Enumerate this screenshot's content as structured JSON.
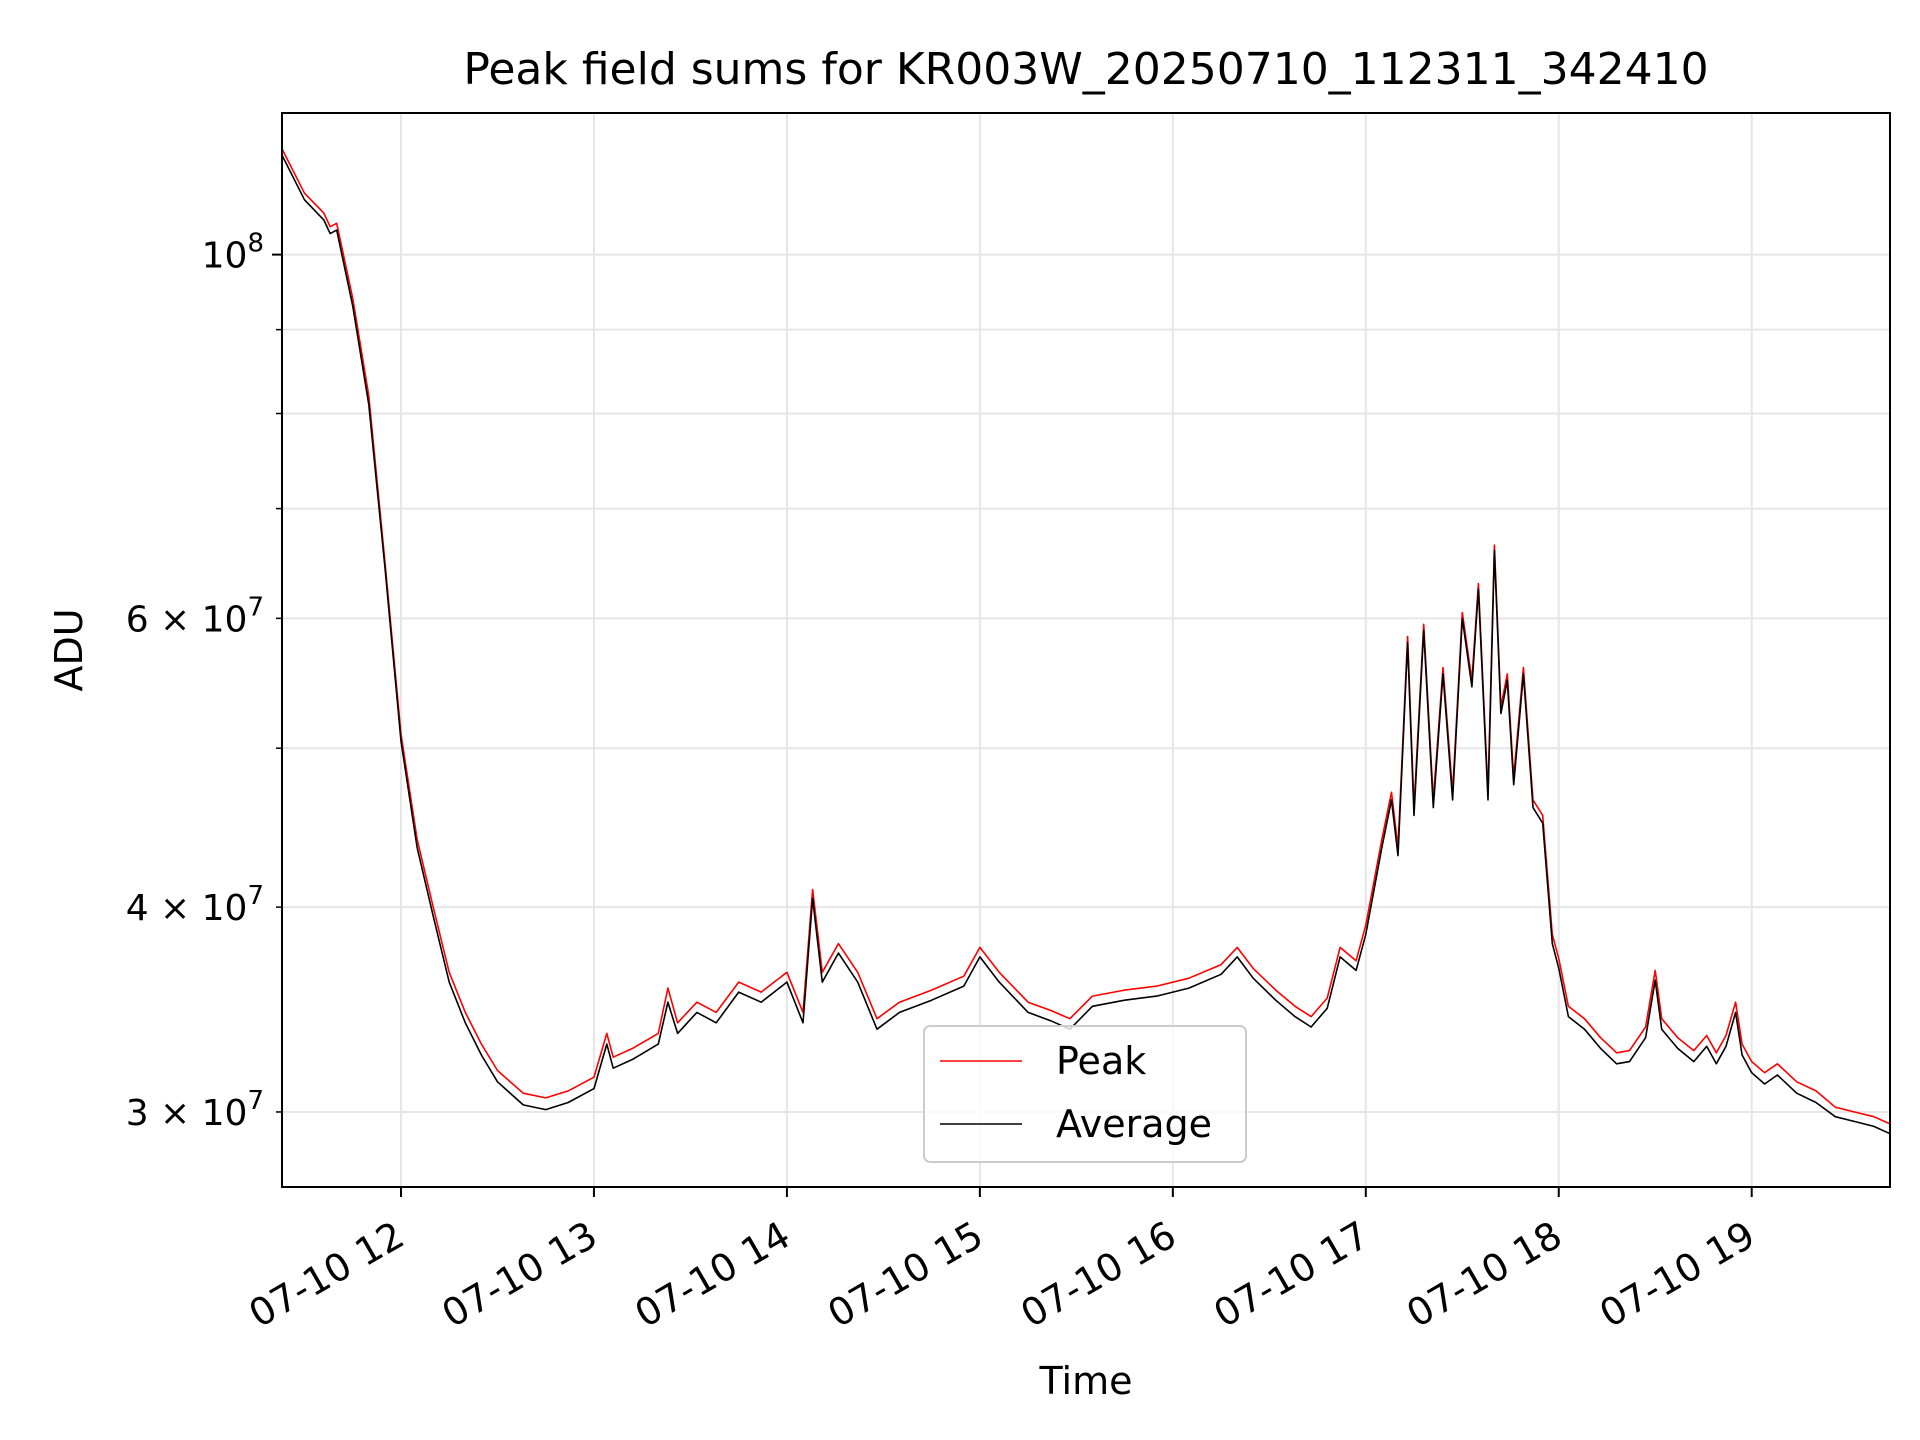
{
  "chart_data": {
    "type": "line",
    "title": "Peak field sums for KR003W_20250710_112311_342410",
    "xlabel": "Time",
    "ylabel": "ADU",
    "yscale": "log",
    "grid": true,
    "legend_position": "lower-center",
    "x_tick_labels": [
      "07-10 12",
      "07-10 13",
      "07-10 14",
      "07-10 15",
      "07-10 16",
      "07-10 17",
      "07-10 18",
      "07-10 19"
    ],
    "y_tick_labels": [
      {
        "base": "10",
        "exp": "8",
        "mult": ""
      },
      {
        "base": "10",
        "exp": "7",
        "mult": "6 × "
      },
      {
        "base": "10",
        "exp": "7",
        "mult": "4 × "
      },
      {
        "base": "10",
        "exp": "7",
        "mult": "3 × "
      }
    ],
    "xlim": [
      "2025-07-10 11:23",
      "2025-07-10 19:43"
    ],
    "ylim": [
      27000000,
      122000000
    ],
    "series": [
      {
        "name": "Peak",
        "color": "#ff0000",
        "points": [
          [
            "2025-07-10 11:23",
            116000000
          ],
          [
            "2025-07-10 11:30",
            109000000
          ],
          [
            "2025-07-10 11:36",
            106000000
          ],
          [
            "2025-07-10 11:38",
            104000000
          ],
          [
            "2025-07-10 11:40",
            104500000
          ],
          [
            "2025-07-10 11:45",
            94000000
          ],
          [
            "2025-07-10 11:50",
            82000000
          ],
          [
            "2025-07-10 11:55",
            65000000
          ],
          [
            "2025-07-10 12:00",
            51000000
          ],
          [
            "2025-07-10 12:05",
            44000000
          ],
          [
            "2025-07-10 12:10",
            40000000
          ],
          [
            "2025-07-10 12:15",
            36500000
          ],
          [
            "2025-07-10 12:20",
            34500000
          ],
          [
            "2025-07-10 12:25",
            33000000
          ],
          [
            "2025-07-10 12:30",
            31800000
          ],
          [
            "2025-07-10 12:38",
            30800000
          ],
          [
            "2025-07-10 12:45",
            30600000
          ],
          [
            "2025-07-10 12:52",
            30900000
          ],
          [
            "2025-07-10 13:00",
            31500000
          ],
          [
            "2025-07-10 13:04",
            33500000
          ],
          [
            "2025-07-10 13:06",
            32400000
          ],
          [
            "2025-07-10 13:12",
            32800000
          ],
          [
            "2025-07-10 13:20",
            33500000
          ],
          [
            "2025-07-10 13:23",
            35700000
          ],
          [
            "2025-07-10 13:26",
            34000000
          ],
          [
            "2025-07-10 13:32",
            35000000
          ],
          [
            "2025-07-10 13:38",
            34500000
          ],
          [
            "2025-07-10 13:45",
            36000000
          ],
          [
            "2025-07-10 13:52",
            35500000
          ],
          [
            "2025-07-10 14:00",
            36500000
          ],
          [
            "2025-07-10 14:05",
            34500000
          ],
          [
            "2025-07-10 14:08",
            41000000
          ],
          [
            "2025-07-10 14:11",
            36500000
          ],
          [
            "2025-07-10 14:16",
            38000000
          ],
          [
            "2025-07-10 14:22",
            36500000
          ],
          [
            "2025-07-10 14:28",
            34200000
          ],
          [
            "2025-07-10 14:35",
            35000000
          ],
          [
            "2025-07-10 14:45",
            35600000
          ],
          [
            "2025-07-10 14:55",
            36300000
          ],
          [
            "2025-07-10 15:00",
            37800000
          ],
          [
            "2025-07-10 15:06",
            36500000
          ],
          [
            "2025-07-10 15:15",
            35000000
          ],
          [
            "2025-07-10 15:22",
            34600000
          ],
          [
            "2025-07-10 15:28",
            34200000
          ],
          [
            "2025-07-10 15:35",
            35300000
          ],
          [
            "2025-07-10 15:45",
            35600000
          ],
          [
            "2025-07-10 15:55",
            35800000
          ],
          [
            "2025-07-10 16:05",
            36200000
          ],
          [
            "2025-07-10 16:15",
            36900000
          ],
          [
            "2025-07-10 16:20",
            37800000
          ],
          [
            "2025-07-10 16:25",
            36700000
          ],
          [
            "2025-07-10 16:32",
            35600000
          ],
          [
            "2025-07-10 16:38",
            34800000
          ],
          [
            "2025-07-10 16:43",
            34300000
          ],
          [
            "2025-07-10 16:48",
            35200000
          ],
          [
            "2025-07-10 16:52",
            37800000
          ],
          [
            "2025-07-10 16:57",
            37100000
          ],
          [
            "2025-07-10 17:00",
            39000000
          ],
          [
            "2025-07-10 17:05",
            44000000
          ],
          [
            "2025-07-10 17:08",
            47000000
          ],
          [
            "2025-07-10 17:10",
            43500000
          ],
          [
            "2025-07-10 17:13",
            58500000
          ],
          [
            "2025-07-10 17:15",
            46000000
          ],
          [
            "2025-07-10 17:18",
            59500000
          ],
          [
            "2025-07-10 17:21",
            46500000
          ],
          [
            "2025-07-10 17:24",
            56000000
          ],
          [
            "2025-07-10 17:27",
            47000000
          ],
          [
            "2025-07-10 17:30",
            60500000
          ],
          [
            "2025-07-10 17:33",
            55000000
          ],
          [
            "2025-07-10 17:35",
            63000000
          ],
          [
            "2025-07-10 17:38",
            47000000
          ],
          [
            "2025-07-10 17:40",
            66500000
          ],
          [
            "2025-07-10 17:42",
            53000000
          ],
          [
            "2025-07-10 17:44",
            55500000
          ],
          [
            "2025-07-10 17:46",
            48000000
          ],
          [
            "2025-07-10 17:49",
            56000000
          ],
          [
            "2025-07-10 17:52",
            46500000
          ],
          [
            "2025-07-10 17:55",
            45500000
          ],
          [
            "2025-07-10 17:58",
            38500000
          ],
          [
            "2025-07-10 18:00",
            37200000
          ],
          [
            "2025-07-10 18:03",
            34800000
          ],
          [
            "2025-07-10 18:08",
            34200000
          ],
          [
            "2025-07-10 18:13",
            33300000
          ],
          [
            "2025-07-10 18:18",
            32600000
          ],
          [
            "2025-07-10 18:22",
            32700000
          ],
          [
            "2025-07-10 18:27",
            33800000
          ],
          [
            "2025-07-10 18:30",
            36600000
          ],
          [
            "2025-07-10 18:32",
            34200000
          ],
          [
            "2025-07-10 18:37",
            33300000
          ],
          [
            "2025-07-10 18:42",
            32700000
          ],
          [
            "2025-07-10 18:46",
            33400000
          ],
          [
            "2025-07-10 18:49",
            32600000
          ],
          [
            "2025-07-10 18:52",
            33400000
          ],
          [
            "2025-07-10 18:55",
            35000000
          ],
          [
            "2025-07-10 18:57",
            33000000
          ],
          [
            "2025-07-10 19:00",
            32200000
          ],
          [
            "2025-07-10 19:04",
            31700000
          ],
          [
            "2025-07-10 19:08",
            32100000
          ],
          [
            "2025-07-10 19:14",
            31300000
          ],
          [
            "2025-07-10 19:20",
            30900000
          ],
          [
            "2025-07-10 19:26",
            30200000
          ],
          [
            "2025-07-10 19:32",
            30000000
          ],
          [
            "2025-07-10 19:38",
            29800000
          ],
          [
            "2025-07-10 19:43",
            29500000
          ]
        ]
      },
      {
        "name": "Average",
        "color": "#000000",
        "points": [
          [
            "2025-07-10 11:23",
            115000000
          ],
          [
            "2025-07-10 11:30",
            108000000
          ],
          [
            "2025-07-10 11:36",
            105000000
          ],
          [
            "2025-07-10 11:38",
            103000000
          ],
          [
            "2025-07-10 11:40",
            103500000
          ],
          [
            "2025-07-10 11:45",
            93000000
          ],
          [
            "2025-07-10 11:50",
            81000000
          ],
          [
            "2025-07-10 11:55",
            64500000
          ],
          [
            "2025-07-10 12:00",
            50500000
          ],
          [
            "2025-07-10 12:05",
            43500000
          ],
          [
            "2025-07-10 12:10",
            39500000
          ],
          [
            "2025-07-10 12:15",
            36000000
          ],
          [
            "2025-07-10 12:20",
            34000000
          ],
          [
            "2025-07-10 12:25",
            32500000
          ],
          [
            "2025-07-10 12:30",
            31300000
          ],
          [
            "2025-07-10 12:38",
            30300000
          ],
          [
            "2025-07-10 12:45",
            30100000
          ],
          [
            "2025-07-10 12:52",
            30400000
          ],
          [
            "2025-07-10 13:00",
            31000000
          ],
          [
            "2025-07-10 13:04",
            33000000
          ],
          [
            "2025-07-10 13:06",
            31900000
          ],
          [
            "2025-07-10 13:12",
            32300000
          ],
          [
            "2025-07-10 13:20",
            33000000
          ],
          [
            "2025-07-10 13:23",
            35000000
          ],
          [
            "2025-07-10 13:26",
            33500000
          ],
          [
            "2025-07-10 13:32",
            34500000
          ],
          [
            "2025-07-10 13:38",
            34000000
          ],
          [
            "2025-07-10 13:45",
            35500000
          ],
          [
            "2025-07-10 13:52",
            35000000
          ],
          [
            "2025-07-10 14:00",
            36000000
          ],
          [
            "2025-07-10 14:05",
            34000000
          ],
          [
            "2025-07-10 14:08",
            40500000
          ],
          [
            "2025-07-10 14:11",
            36000000
          ],
          [
            "2025-07-10 14:16",
            37500000
          ],
          [
            "2025-07-10 14:22",
            36000000
          ],
          [
            "2025-07-10 14:28",
            33700000
          ],
          [
            "2025-07-10 14:35",
            34500000
          ],
          [
            "2025-07-10 14:45",
            35100000
          ],
          [
            "2025-07-10 14:55",
            35800000
          ],
          [
            "2025-07-10 15:00",
            37300000
          ],
          [
            "2025-07-10 15:06",
            36000000
          ],
          [
            "2025-07-10 15:15",
            34500000
          ],
          [
            "2025-07-10 15:22",
            34100000
          ],
          [
            "2025-07-10 15:28",
            33700000
          ],
          [
            "2025-07-10 15:35",
            34800000
          ],
          [
            "2025-07-10 15:45",
            35100000
          ],
          [
            "2025-07-10 15:55",
            35300000
          ],
          [
            "2025-07-10 16:05",
            35700000
          ],
          [
            "2025-07-10 16:15",
            36400000
          ],
          [
            "2025-07-10 16:20",
            37300000
          ],
          [
            "2025-07-10 16:25",
            36200000
          ],
          [
            "2025-07-10 16:32",
            35100000
          ],
          [
            "2025-07-10 16:38",
            34300000
          ],
          [
            "2025-07-10 16:43",
            33800000
          ],
          [
            "2025-07-10 16:48",
            34700000
          ],
          [
            "2025-07-10 16:52",
            37300000
          ],
          [
            "2025-07-10 16:57",
            36600000
          ],
          [
            "2025-07-10 17:00",
            38500000
          ],
          [
            "2025-07-10 17:05",
            43500000
          ],
          [
            "2025-07-10 17:08",
            46500000
          ],
          [
            "2025-07-10 17:10",
            43000000
          ],
          [
            "2025-07-10 17:13",
            58000000
          ],
          [
            "2025-07-10 17:15",
            45500000
          ],
          [
            "2025-07-10 17:18",
            59000000
          ],
          [
            "2025-07-10 17:21",
            46000000
          ],
          [
            "2025-07-10 17:24",
            55500000
          ],
          [
            "2025-07-10 17:27",
            46500000
          ],
          [
            "2025-07-10 17:30",
            60000000
          ],
          [
            "2025-07-10 17:33",
            54500000
          ],
          [
            "2025-07-10 17:35",
            62500000
          ],
          [
            "2025-07-10 17:38",
            46500000
          ],
          [
            "2025-07-10 17:40",
            66000000
          ],
          [
            "2025-07-10 17:42",
            52500000
          ],
          [
            "2025-07-10 17:44",
            55000000
          ],
          [
            "2025-07-10 17:46",
            47500000
          ],
          [
            "2025-07-10 17:49",
            55500000
          ],
          [
            "2025-07-10 17:52",
            46000000
          ],
          [
            "2025-07-10 17:55",
            45000000
          ],
          [
            "2025-07-10 17:58",
            38000000
          ],
          [
            "2025-07-10 18:00",
            36700000
          ],
          [
            "2025-07-10 18:03",
            34300000
          ],
          [
            "2025-07-10 18:08",
            33700000
          ],
          [
            "2025-07-10 18:13",
            32800000
          ],
          [
            "2025-07-10 18:18",
            32100000
          ],
          [
            "2025-07-10 18:22",
            32200000
          ],
          [
            "2025-07-10 18:27",
            33300000
          ],
          [
            "2025-07-10 18:30",
            36100000
          ],
          [
            "2025-07-10 18:32",
            33700000
          ],
          [
            "2025-07-10 18:37",
            32800000
          ],
          [
            "2025-07-10 18:42",
            32200000
          ],
          [
            "2025-07-10 18:46",
            32900000
          ],
          [
            "2025-07-10 18:49",
            32100000
          ],
          [
            "2025-07-10 18:52",
            32900000
          ],
          [
            "2025-07-10 18:55",
            34500000
          ],
          [
            "2025-07-10 18:57",
            32500000
          ],
          [
            "2025-07-10 19:00",
            31700000
          ],
          [
            "2025-07-10 19:04",
            31200000
          ],
          [
            "2025-07-10 19:08",
            31600000
          ],
          [
            "2025-07-10 19:14",
            30800000
          ],
          [
            "2025-07-10 19:20",
            30400000
          ],
          [
            "2025-07-10 19:26",
            29800000
          ],
          [
            "2025-07-10 19:32",
            29600000
          ],
          [
            "2025-07-10 19:38",
            29400000
          ],
          [
            "2025-07-10 19:43",
            29100000
          ]
        ]
      }
    ]
  }
}
